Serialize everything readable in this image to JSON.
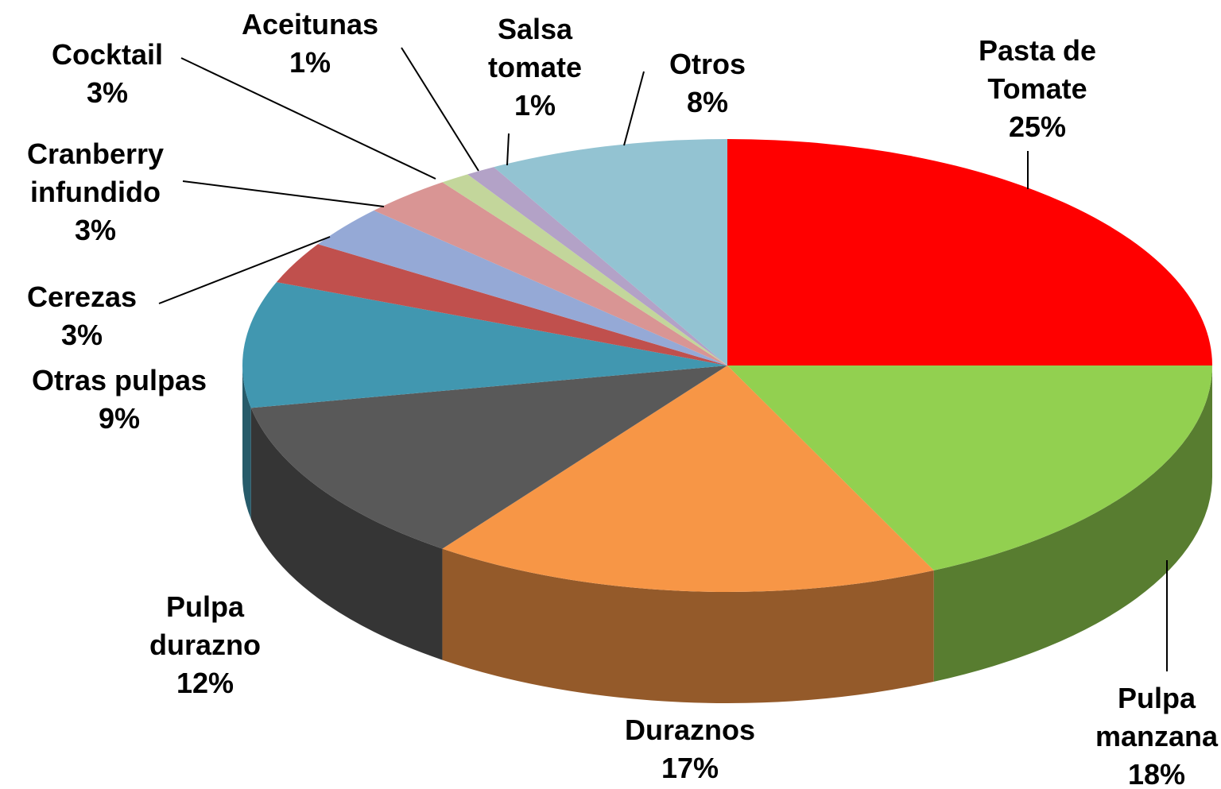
{
  "chart_data": {
    "type": "pie",
    "categories": [
      "Pasta de Tomate",
      "Pulpa manzana",
      "Duraznos",
      "Pulpa durazno",
      "Otras pulpas",
      "Cerezas",
      "Cranberry infundido",
      "Cocktail",
      "Aceitunas",
      "Salsa tomate",
      "Otros"
    ],
    "values": [
      25,
      18,
      17,
      12,
      9,
      3,
      3,
      3,
      1,
      1,
      8
    ],
    "value_labels": [
      "25%",
      "18%",
      "17%",
      "12%",
      "9%",
      "3%",
      "3%",
      "3%",
      "1%",
      "1%",
      "8%"
    ],
    "colors": [
      "#ff0000",
      "#92d050",
      "#f79646",
      "#595959",
      "#4197b0",
      "#c0504d",
      "#95a9d6",
      "#d99594",
      "#c3d69b",
      "#b3a2c7",
      "#93c3d2"
    ]
  }
}
